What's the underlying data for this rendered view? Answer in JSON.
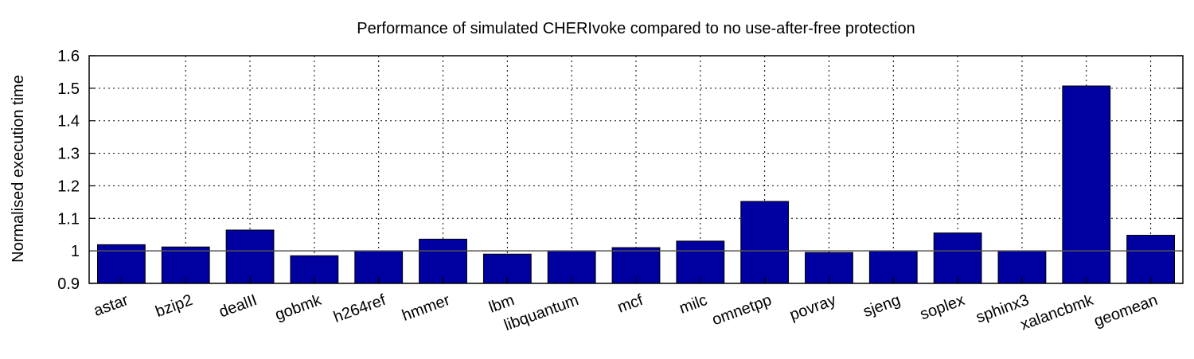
{
  "chart_data": {
    "type": "bar",
    "title": "Performance of simulated CHERIvoke compared to no use-after-free protection",
    "xlabel": "",
    "ylabel": "Normalised execution time",
    "ylim": [
      0.9,
      1.6
    ],
    "yticks": [
      "0.9",
      "1",
      "1.1",
      "1.2",
      "1.3",
      "1.4",
      "1.5",
      "1.6"
    ],
    "grid": true,
    "baseline": 1.0,
    "bar_color": "#0000a0",
    "categories": [
      "astar",
      "bzip2",
      "dealII",
      "gobmk",
      "h264ref",
      "hmmer",
      "lbm",
      "libquantum",
      "mcf",
      "milc",
      "omnetpp",
      "povray",
      "sjeng",
      "soplex",
      "sphinx3",
      "xalancbmk",
      "geomean"
    ],
    "values": [
      1.019,
      1.012,
      1.064,
      0.985,
      1.0,
      1.036,
      0.99,
      1.0,
      1.01,
      1.03,
      1.152,
      0.995,
      1.0,
      1.055,
      1.0,
      1.507,
      1.048
    ]
  }
}
